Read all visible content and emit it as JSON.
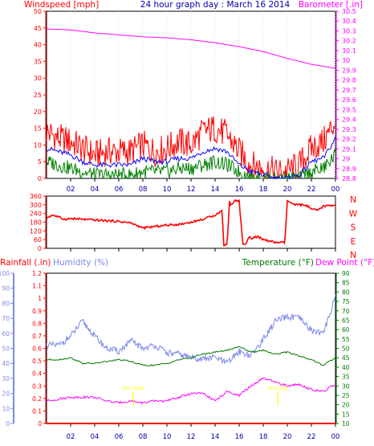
{
  "header": {
    "left_title": "Windspeed [mph]",
    "center_title": "24 hour graph day : March 16 2014",
    "right_title": "Barometer [.in]"
  },
  "colors": {
    "wind_gust": "#ff0000",
    "wind_avg": "#0000ff",
    "wind_low": "#008000",
    "barometer": "#ff00ff",
    "direction": "#ff0000",
    "rain": "#ff0000",
    "humidity": "#7b89e8",
    "temperature": "#007700",
    "dewpoint": "#ff00ff",
    "sun_marker": "#ffff00",
    "title_blue": "#0000aa"
  },
  "x_ticks": [
    "02",
    "04",
    "06",
    "08",
    "10",
    "12",
    "14",
    "16",
    "18",
    "20",
    "22",
    "00"
  ],
  "wind_panel": {
    "left_ticks": [
      "0",
      "5",
      "10",
      "15",
      "20",
      "25",
      "30",
      "35",
      "40",
      "45",
      "50"
    ],
    "right_ticks": [
      "28.8",
      "28.9",
      "29",
      "29.1",
      "29.2",
      "29.3",
      "29.4",
      "29.5",
      "29.6",
      "29.7",
      "29.8",
      "29.9",
      "30",
      "30.1",
      "30.2",
      "30.3",
      "30.4",
      "30.5"
    ]
  },
  "direction_panel": {
    "left_ticks": [
      "0",
      "60",
      "120",
      "180",
      "240",
      "300",
      "360"
    ],
    "compass": [
      "N",
      "W",
      "S",
      "E",
      "N"
    ]
  },
  "bottom_panel": {
    "rain_title": "Rainfall (.in)",
    "humidity_title": "Humidity (%)",
    "temperature_title": "Temperature (°F)",
    "dewpoint_title": "Dew Point (°F)",
    "humidity_ticks": [
      "0",
      "10",
      "20",
      "30",
      "40",
      "50",
      "60",
      "70",
      "80",
      "90",
      "100"
    ],
    "rain_ticks": [
      "0",
      "0.1",
      "0.2",
      "0.3",
      "0.4",
      "0.5",
      "0.6",
      "0.7",
      "0.8",
      "0.9",
      "1",
      "1.1",
      "1.2"
    ],
    "temp_ticks": [
      "10",
      "15",
      "20",
      "25",
      "30",
      "35",
      "40",
      "45",
      "50",
      "55",
      "60",
      "65",
      "70",
      "75",
      "80",
      "85",
      "90"
    ],
    "sunrise_label": "Sun Rise",
    "sunset_label": "Sun Set"
  },
  "chart_data": [
    {
      "type": "line",
      "title": "Windspeed / Barometer",
      "x_unit": "hour",
      "x_range": [
        0,
        24
      ],
      "ylim_left": [
        0,
        50
      ],
      "ylim_right": [
        28.8,
        30.5
      ],
      "series": [
        {
          "name": "Windspeed gust",
          "axis": "left",
          "x": [
            0,
            1,
            2,
            3,
            4,
            5,
            6,
            7,
            8,
            9,
            10,
            11,
            12,
            13,
            14,
            15,
            16,
            17,
            18,
            19,
            20,
            21,
            22,
            23,
            24
          ],
          "values": [
            14,
            12,
            11,
            9,
            7,
            8,
            8,
            8,
            10,
            8,
            9,
            11,
            10,
            14,
            15,
            13,
            8,
            4,
            3,
            2,
            2,
            4,
            9,
            11,
            17
          ]
        },
        {
          "name": "Windspeed average",
          "axis": "left",
          "x": [
            0,
            1,
            2,
            3,
            4,
            5,
            6,
            7,
            8,
            9,
            10,
            11,
            12,
            13,
            14,
            15,
            16,
            17,
            18,
            19,
            20,
            21,
            22,
            23,
            24
          ],
          "values": [
            9,
            8,
            7,
            5,
            4,
            4,
            4,
            4,
            6,
            5,
            5,
            6,
            6,
            8,
            9,
            8,
            4,
            2,
            1,
            0,
            0,
            1,
            5,
            6,
            12
          ]
        },
        {
          "name": "Windspeed low",
          "axis": "left",
          "x": [
            0,
            1,
            2,
            3,
            4,
            5,
            6,
            7,
            8,
            9,
            10,
            11,
            12,
            13,
            14,
            15,
            16,
            17,
            18,
            19,
            20,
            21,
            22,
            23,
            24
          ],
          "values": [
            5,
            4,
            3,
            2,
            1,
            1,
            1,
            1,
            2,
            2,
            2,
            3,
            3,
            4,
            5,
            4,
            2,
            0,
            0,
            0,
            0,
            0,
            2,
            3,
            7
          ]
        },
        {
          "name": "Barometer",
          "axis": "right",
          "x": [
            0,
            2,
            4,
            6,
            8,
            10,
            12,
            14,
            16,
            18,
            20,
            22,
            24
          ],
          "values": [
            30.32,
            30.31,
            30.28,
            30.26,
            30.24,
            30.23,
            30.21,
            30.18,
            30.14,
            30.09,
            30.02,
            29.96,
            29.92
          ]
        }
      ]
    },
    {
      "type": "line",
      "title": "Wind direction",
      "x_range": [
        0,
        24
      ],
      "ylim": [
        0,
        360
      ],
      "series": [
        {
          "name": "Wind direction",
          "x": [
            0,
            0.5,
            1,
            1.5,
            2,
            3,
            4,
            5,
            6,
            7,
            8,
            9,
            10,
            11,
            12,
            13,
            14,
            14.6,
            14.7,
            15,
            15.2,
            15.3,
            15.6,
            16,
            16.3,
            16.6,
            16.8,
            17,
            17.5,
            18,
            18.5,
            19,
            19.8,
            20,
            20.5,
            21,
            21.5,
            22,
            22.5,
            23,
            24
          ],
          "values": [
            210,
            230,
            215,
            200,
            205,
            200,
            195,
            190,
            185,
            175,
            140,
            150,
            160,
            165,
            180,
            200,
            230,
            260,
            25,
            25,
            330,
            290,
            330,
            325,
            30,
            30,
            80,
            70,
            80,
            60,
            50,
            40,
            40,
            330,
            300,
            300,
            300,
            270,
            260,
            290,
            300
          ]
        }
      ]
    },
    {
      "type": "line",
      "title": "Rainfall / Humidity / Temperature / Dew Point",
      "x_range": [
        0,
        24
      ],
      "ylim_humidity": [
        0,
        100
      ],
      "ylim_rain": [
        0,
        1.2
      ],
      "ylim_temperature": [
        10,
        90
      ],
      "series": [
        {
          "name": "Humidity",
          "axis": "humidity",
          "x": [
            0,
            1,
            2,
            3,
            4,
            5,
            6,
            7,
            8,
            9,
            10,
            11,
            12,
            13,
            14,
            15,
            16,
            17,
            18,
            19,
            20,
            21,
            22,
            23,
            24
          ],
          "values": [
            52,
            52,
            58,
            68,
            58,
            50,
            48,
            55,
            50,
            52,
            47,
            46,
            44,
            43,
            44,
            40,
            48,
            45,
            56,
            68,
            71,
            70,
            62,
            60,
            85
          ]
        },
        {
          "name": "Rainfall",
          "axis": "rain",
          "x": [
            0,
            24
          ],
          "values": [
            0,
            0
          ]
        },
        {
          "name": "Temperature",
          "axis": "temperature",
          "x": [
            0,
            1,
            2,
            3,
            4,
            5,
            6,
            7,
            8,
            9,
            10,
            11,
            12,
            13,
            14,
            15,
            16,
            17,
            18,
            19,
            20,
            21,
            22,
            23,
            24
          ],
          "values": [
            44,
            44,
            45,
            42,
            42,
            43,
            44,
            43,
            41,
            41,
            42,
            44,
            45,
            47,
            48,
            49,
            51,
            48,
            49,
            47,
            48,
            46,
            44,
            41,
            45
          ]
        },
        {
          "name": "Dew Point",
          "axis": "temperature",
          "x": [
            0,
            1,
            2,
            3,
            4,
            5,
            6,
            7,
            8,
            9,
            10,
            11,
            12,
            13,
            14,
            15,
            16,
            17,
            18,
            19,
            20,
            21,
            22,
            23,
            24
          ],
          "values": [
            22,
            23,
            24,
            24,
            24,
            22,
            21,
            22,
            21,
            22,
            22,
            24,
            26,
            26,
            22,
            27,
            25,
            30,
            34,
            32,
            30,
            31,
            28,
            27,
            31
          ]
        }
      ],
      "annotations": [
        {
          "label": "Sun Rise",
          "x": 7.2
        },
        {
          "label": "Sun Set",
          "x": 19.2
        }
      ]
    }
  ]
}
